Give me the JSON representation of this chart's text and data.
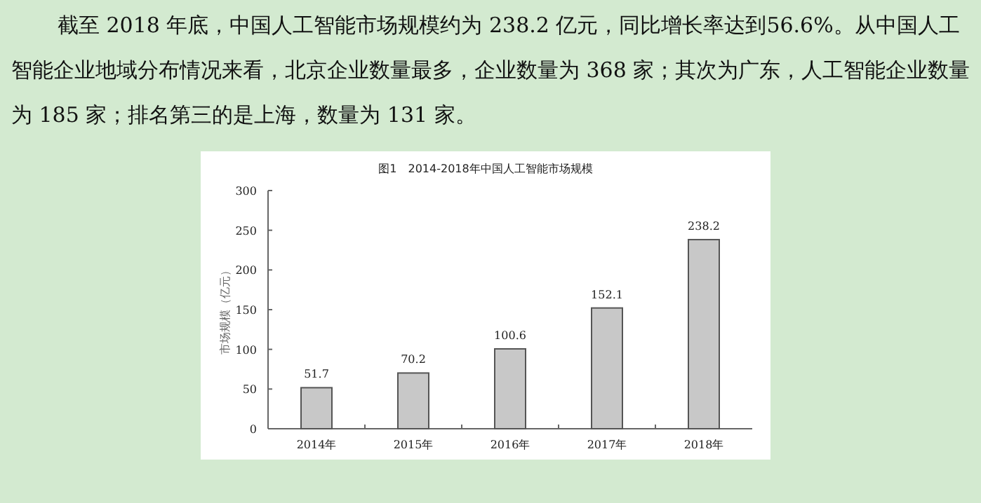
{
  "chart_data": {
    "type": "bar",
    "title": "图1　2014-2018年中国人工智能市场规模",
    "ylabel": "市场规模（亿元）",
    "categories": [
      "2014年",
      "2015年",
      "2016年",
      "2017年",
      "2018年"
    ],
    "values": [
      51.7,
      70.2,
      100.6,
      152.1,
      238.2
    ],
    "color": "#c8c8c8",
    "ylim": [
      0,
      300
    ],
    "yticks": [
      0,
      50,
      100,
      150,
      200,
      250,
      300
    ],
    "data_labels": true,
    "grid": false,
    "annotations": [
      "截至 2018 年底，中国人工智能市场规模约为 238.2 亿元，同比增长率达到56.6%。从中国人工智能企业地域分布情况来看，北京企业数量最多，企业数量为 368 家；其次为广东，人工智能企业数量为 185 家；排名第三的是上海，数量为 131 家。"
    ]
  }
}
